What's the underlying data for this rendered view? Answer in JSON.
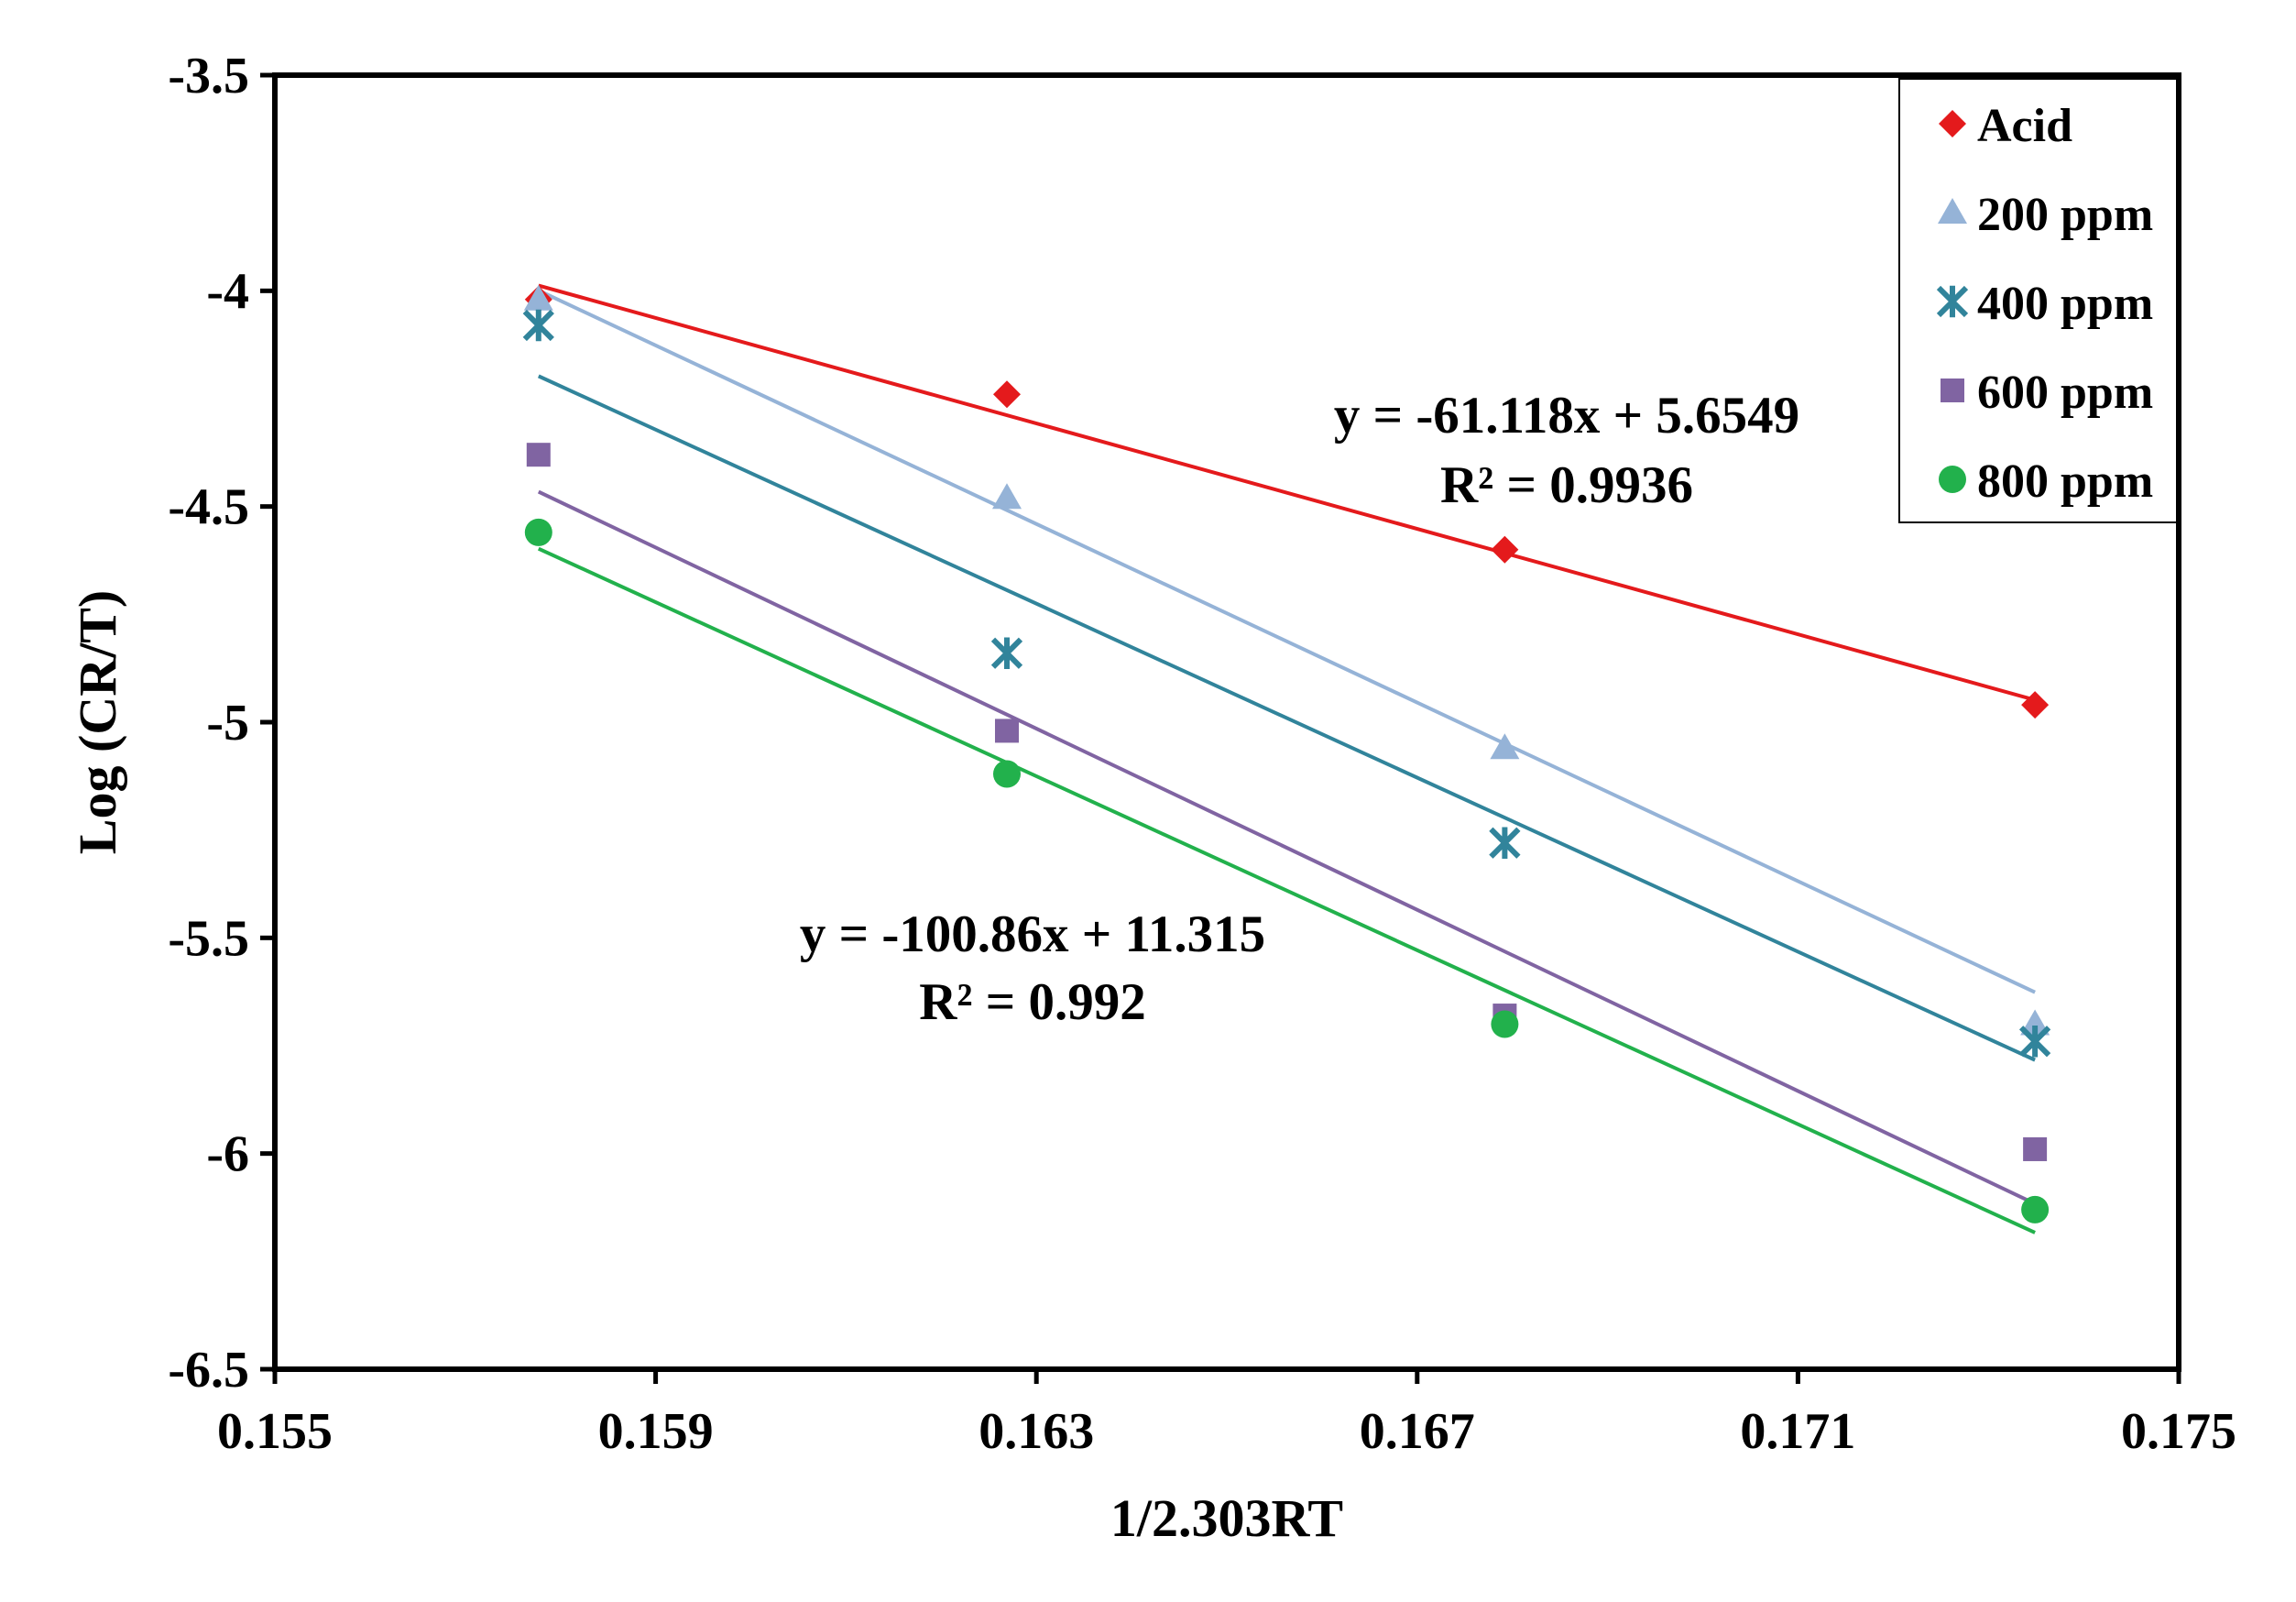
{
  "chart_data": {
    "type": "scatter",
    "title": "",
    "xlabel": "1/2.303RT",
    "ylabel": "Log (CR/T)",
    "xlim": [
      0.155,
      0.175
    ],
    "ylim": [
      -6.5,
      -3.5
    ],
    "x_ticks": [
      0.155,
      0.159,
      0.163,
      0.167,
      0.171,
      0.175
    ],
    "y_ticks": [
      -3.5,
      -4,
      -4.5,
      -5,
      -5.5,
      -6,
      -6.5
    ],
    "x_tick_labels": [
      "0.155",
      "0.159",
      "0.163",
      "0.167",
      "0.171",
      "0.175"
    ],
    "y_tick_labels": [
      "-3.5",
      "-4",
      "-4.5",
      "-5",
      "-5.5",
      "-6",
      "-6.5"
    ],
    "grid": false,
    "legend_position": "top-right",
    "x": [
      0.15777,
      0.16269,
      0.16792,
      0.17349
    ],
    "series": [
      {
        "name": "Acid",
        "color": "#e41a1c",
        "marker": "diamond",
        "values": [
          -4.02,
          -4.24,
          -4.6,
          -4.96
        ],
        "trendline": {
          "slope": -61.118,
          "intercept": 5.6549
        }
      },
      {
        "name": "200 ppm",
        "color": "#95b3d7",
        "marker": "triangle",
        "values": [
          -4.02,
          -4.48,
          -5.06,
          -5.7
        ],
        "trendline": {
          "slope": -103.5,
          "intercept": 12.33
        }
      },
      {
        "name": "400 ppm",
        "color": "#31849b",
        "marker": "star",
        "values": [
          -4.08,
          -4.84,
          -5.28,
          -5.74
        ],
        "trendline": {
          "slope": -100.86,
          "intercept": 11.715
        }
      },
      {
        "name": "600 ppm",
        "color": "#8064a2",
        "marker": "square",
        "values": [
          -4.38,
          -5.02,
          -5.68,
          -5.99
        ],
        "trendline": {
          "slope": -105.0,
          "intercept": 12.1
        }
      },
      {
        "name": "800 ppm",
        "color": "#22b14c",
        "marker": "circle",
        "values": [
          -4.56,
          -5.12,
          -5.7,
          -6.13
        ],
        "trendline": {
          "slope": -100.86,
          "intercept": 11.315
        }
      }
    ],
    "annotations": [
      {
        "lines": [
          "y = -61.118x + 5.6549",
          "R² = 0.9936"
        ]
      },
      {
        "lines": [
          "y = -100.86x + 11.315",
          "R² = 0.992"
        ]
      }
    ]
  }
}
